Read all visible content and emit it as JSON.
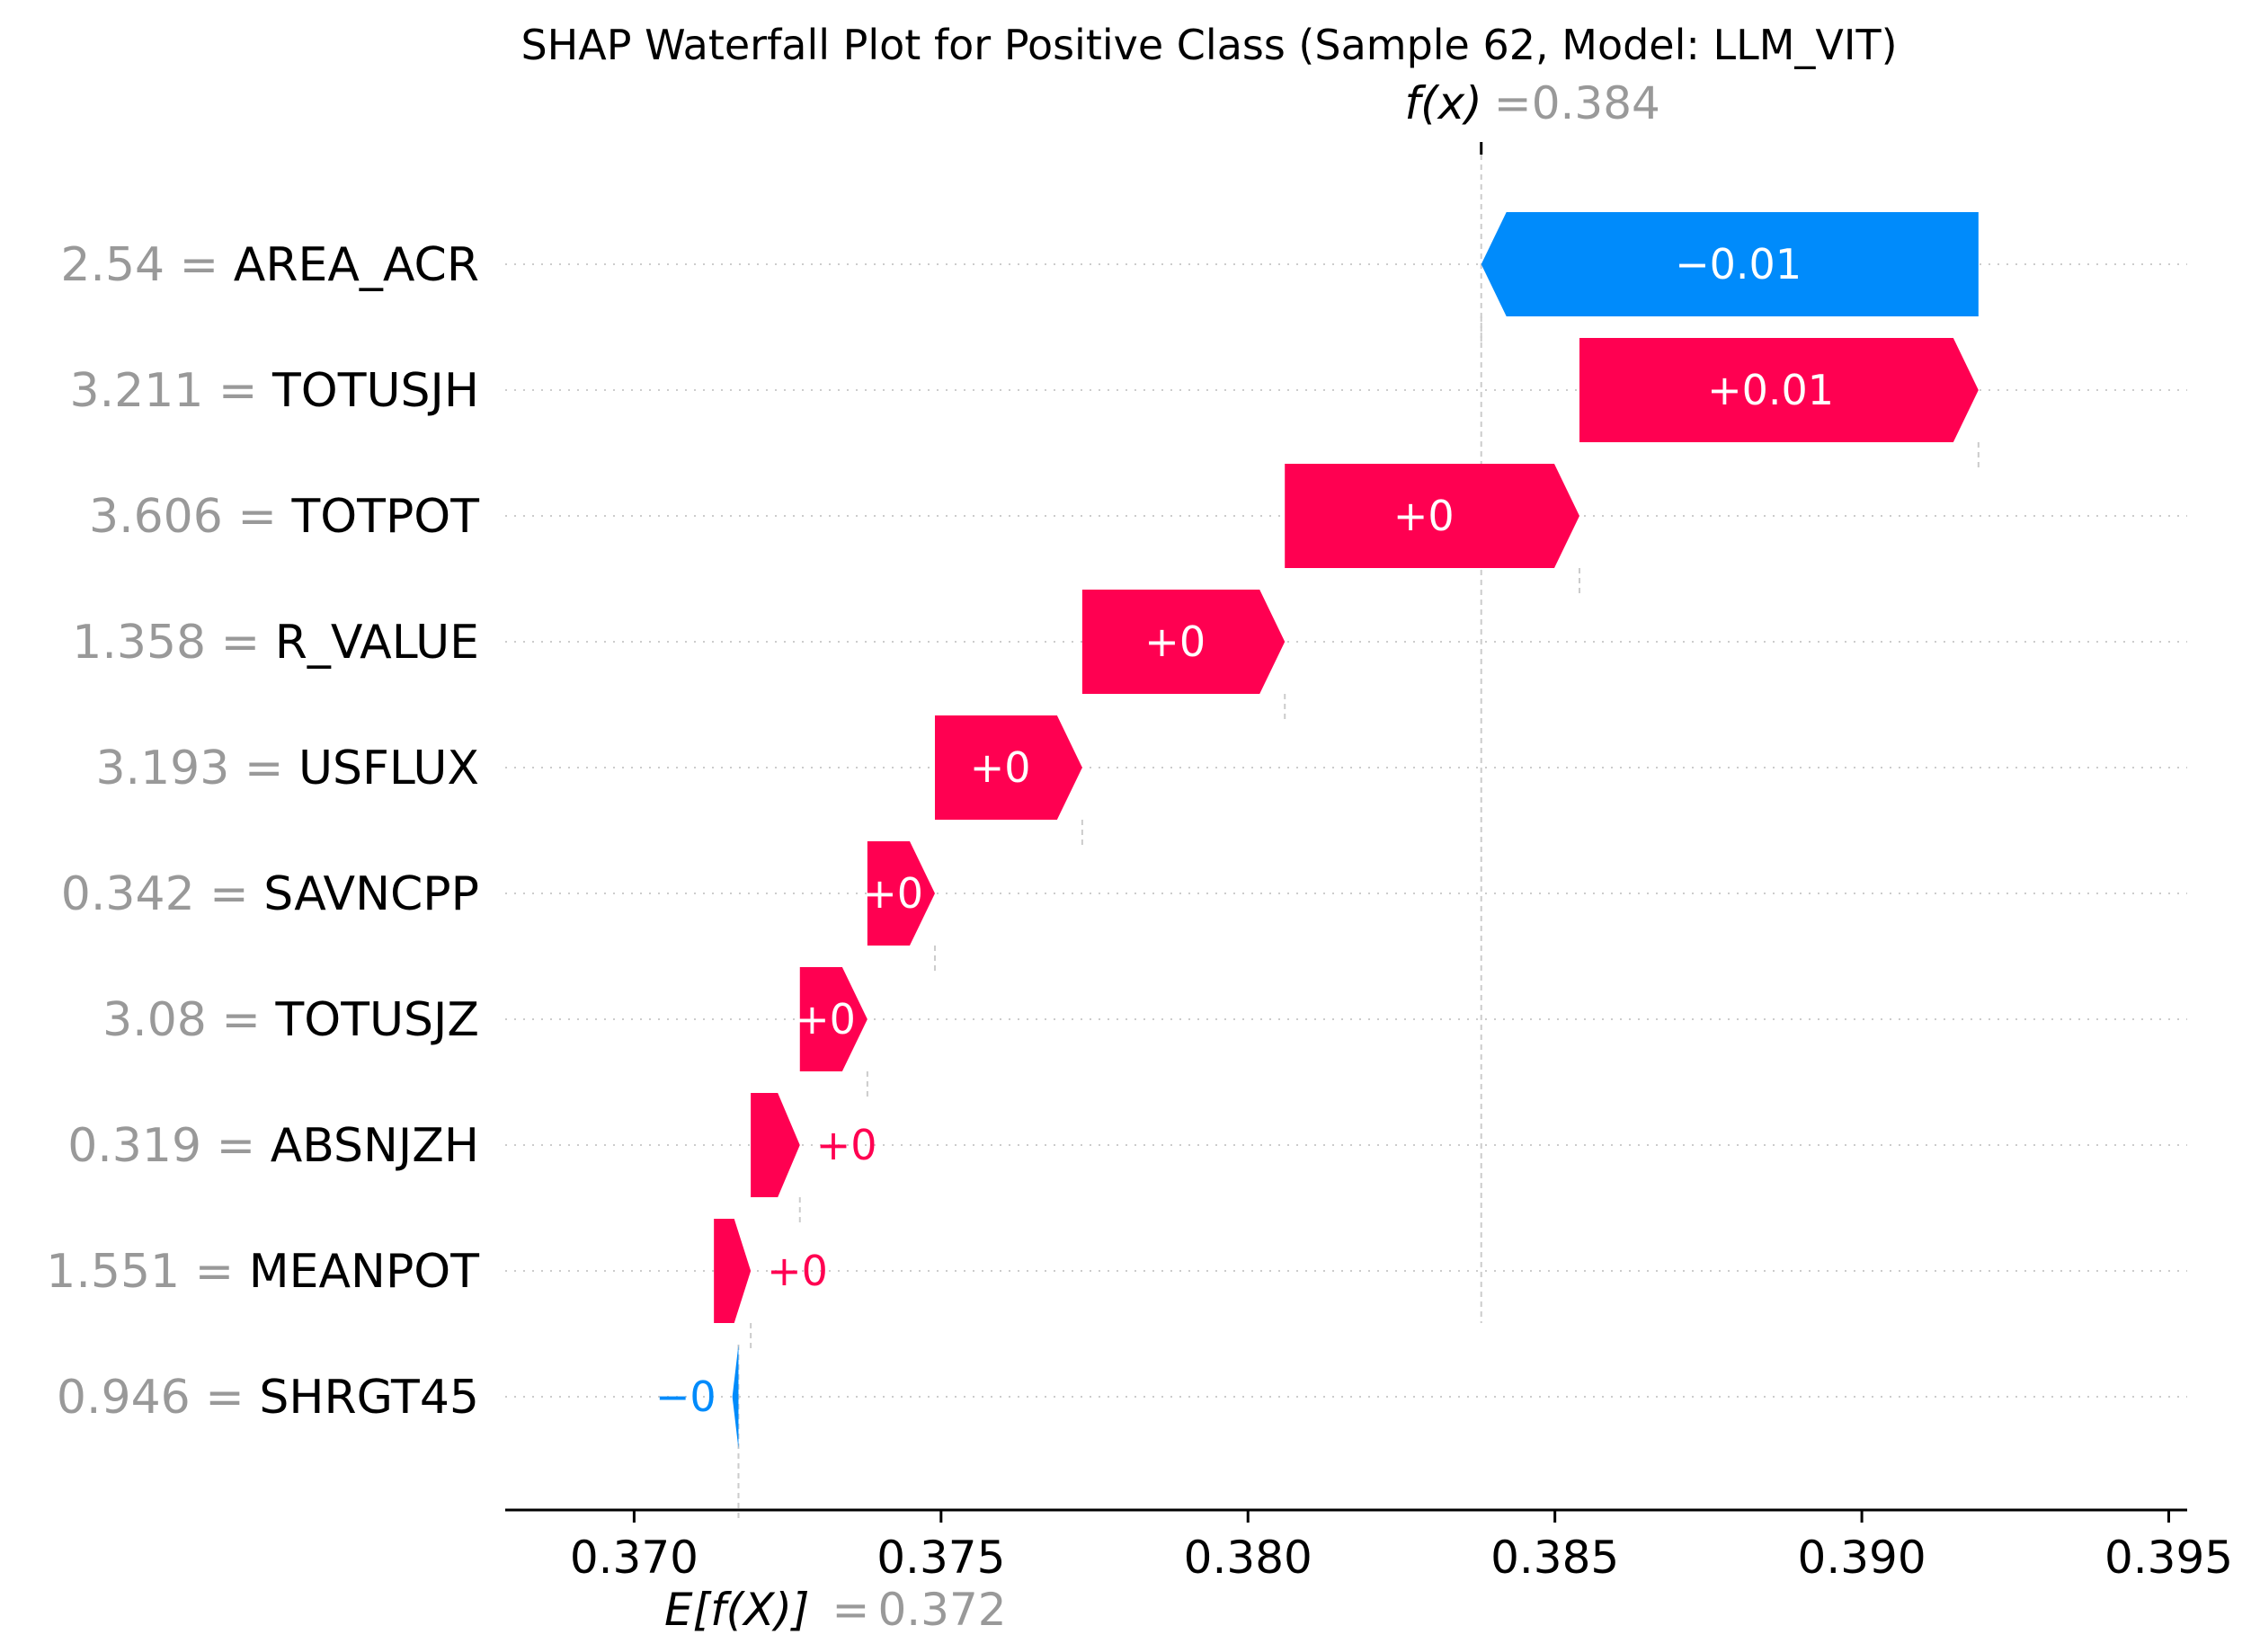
{
  "chart_data": {
    "type": "waterfall",
    "title": "SHAP Waterfall Plot for Positive Class (Sample 62, Model: LLM_VIT)",
    "fx": {
      "label": "f(x)",
      "value_text": "0.384",
      "value": 0.3838
    },
    "efx": {
      "label": "E[f(X)]",
      "value_text": "0.372",
      "value": 0.3717
    },
    "xlim": [
      0.3679,
      0.3953
    ],
    "xticks": [
      {
        "value": 0.37,
        "label": "0.370"
      },
      {
        "value": 0.375,
        "label": "0.375"
      },
      {
        "value": 0.38,
        "label": "0.380"
      },
      {
        "value": 0.385,
        "label": "0.385"
      },
      {
        "value": 0.39,
        "label": "0.390"
      },
      {
        "value": 0.395,
        "label": "0.395"
      }
    ],
    "features": [
      {
        "value": "2.54",
        "name": "AREA_ACR",
        "shap": -0.0081,
        "label": "−0.01",
        "start": 0.3919
      },
      {
        "value": "3.211",
        "name": "TOTUSJH",
        "shap": 0.0065,
        "label": "+0.01",
        "start": 0.3854
      },
      {
        "value": "3.606",
        "name": "TOTPOT",
        "shap": 0.0048,
        "label": "+0",
        "start": 0.3806
      },
      {
        "value": "1.358",
        "name": "R_VALUE",
        "shap": 0.0033,
        "label": "+0",
        "start": 0.3773
      },
      {
        "value": "3.193",
        "name": "USFLUX",
        "shap": 0.0024,
        "label": "+0",
        "start": 0.3749
      },
      {
        "value": "0.342",
        "name": "SAVNCPP",
        "shap": 0.0011,
        "label": "+0",
        "start": 0.3738
      },
      {
        "value": "3.08",
        "name": "TOTUSJZ",
        "shap": 0.0011,
        "label": "+0",
        "start": 0.3727
      },
      {
        "value": "0.319",
        "name": "ABSNJZH",
        "shap": 0.0008,
        "label": "+0",
        "start": 0.3719
      },
      {
        "value": "1.551",
        "name": "MEANPOT",
        "shap": 0.0006,
        "label": "+0",
        "start": 0.3713
      },
      {
        "value": "0.946",
        "name": "SHRGT45",
        "shap": -0.0001,
        "label": "−0",
        "start": 0.3717
      }
    ],
    "colors": {
      "positive": "#ff0051",
      "negative": "#008bfb",
      "muted": "#999999",
      "axis": "#000000",
      "grid": "#cccccc"
    }
  }
}
